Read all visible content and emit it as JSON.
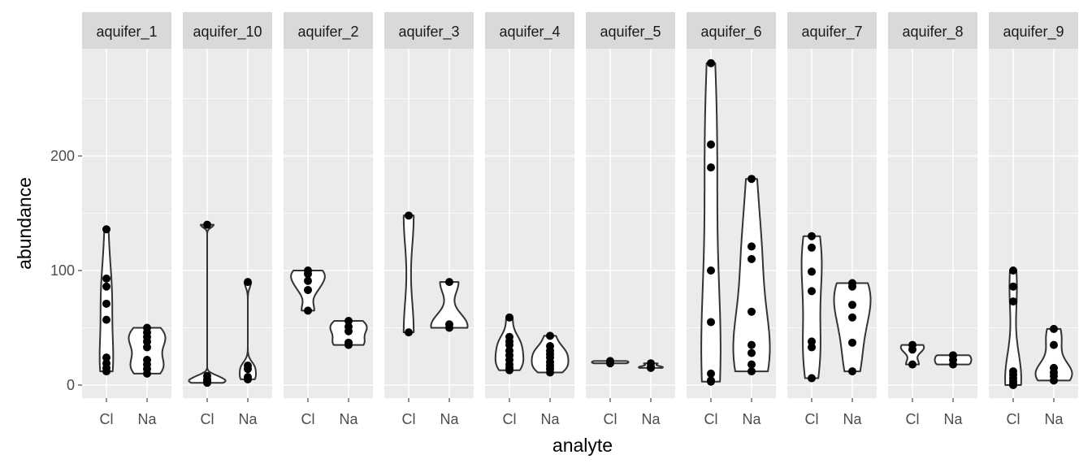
{
  "chart_data": {
    "type": "violin",
    "xlabel": "analyte",
    "ylabel": "abundance",
    "ylim": [
      -14,
      294
    ],
    "y_ticks": [
      0,
      100,
      200
    ],
    "y_tick_labels": [
      "0",
      "100",
      "200"
    ],
    "categories": [
      "Cl",
      "Na"
    ],
    "grid": true,
    "colors": {
      "panel": "#ebebeb",
      "strip": "#d9d9d9",
      "grid": "#ffffff",
      "violin_fill": "#ffffff",
      "violin_line": "#333333",
      "point": "#000000"
    },
    "panels": [
      {
        "name": "aquifer_1",
        "Cl": [
          136,
          93,
          86,
          71,
          57,
          24,
          19,
          15,
          12
        ],
        "Na": [
          50,
          46,
          42,
          38,
          33,
          22,
          18,
          14,
          10
        ]
      },
      {
        "name": "aquifer_10",
        "Cl": [
          140,
          8,
          5,
          3,
          2
        ],
        "Na": [
          90,
          17,
          14,
          7,
          5
        ]
      },
      {
        "name": "aquifer_2",
        "Cl": [
          100,
          97,
          91,
          83,
          65
        ],
        "Na": [
          56,
          51,
          47,
          37,
          35
        ]
      },
      {
        "name": "aquifer_3",
        "Cl": [
          148,
          46
        ],
        "Na": [
          90,
          53,
          50
        ]
      },
      {
        "name": "aquifer_4",
        "Cl": [
          59,
          42,
          38,
          35,
          30,
          26,
          22,
          18,
          15,
          13
        ],
        "Na": [
          43,
          34,
          30,
          27,
          24,
          20,
          17,
          14,
          11
        ]
      },
      {
        "name": "aquifer_5",
        "Cl": [
          21,
          20,
          19
        ],
        "Na": [
          19,
          16,
          15
        ]
      },
      {
        "name": "aquifer_6",
        "Cl": [
          281,
          210,
          190,
          100,
          55,
          10,
          4,
          3
        ],
        "Na": [
          180,
          121,
          110,
          64,
          35,
          28,
          18,
          12
        ]
      },
      {
        "name": "aquifer_7",
        "Cl": [
          130,
          120,
          99,
          82,
          38,
          33,
          6
        ],
        "Na": [
          89,
          86,
          70,
          59,
          37,
          12
        ]
      },
      {
        "name": "aquifer_8",
        "Cl": [
          35,
          31,
          18
        ],
        "Na": [
          26,
          22,
          18
        ]
      },
      {
        "name": "aquifer_9",
        "Cl": [
          100,
          86,
          73,
          12,
          9,
          6,
          3,
          1,
          0
        ],
        "Na": [
          49,
          35,
          15,
          11,
          8,
          4
        ]
      }
    ]
  }
}
